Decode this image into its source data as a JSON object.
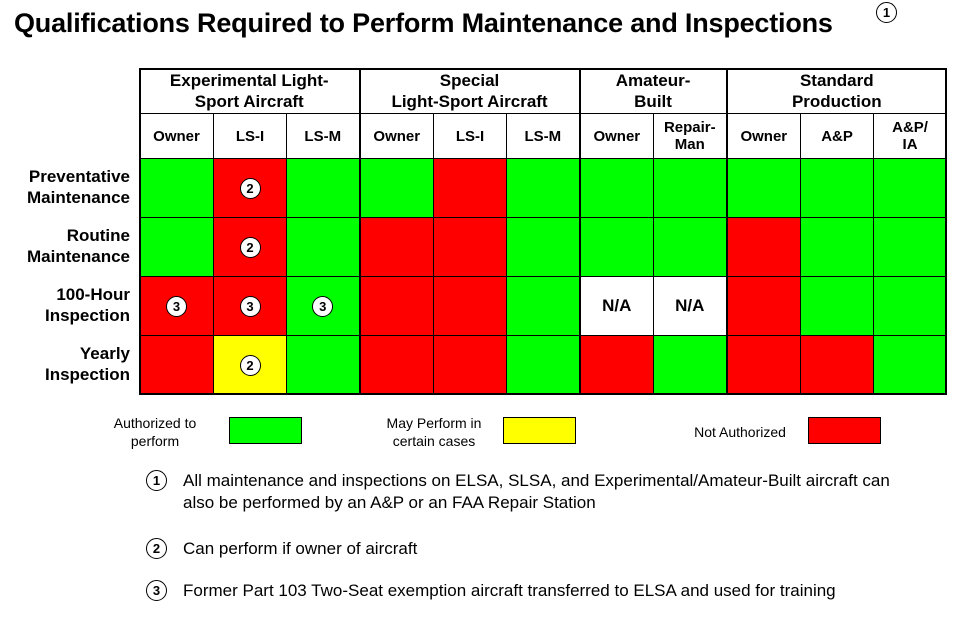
{
  "title": "Qualifications Required to Perform Maintenance and Inspections",
  "title_note": "1",
  "groups": [
    {
      "label": "Experimental Light-Sport Aircraft",
      "cols": [
        "Owner",
        "LS-I",
        "LS-M"
      ]
    },
    {
      "label": "Special Light-Sport Aircraft",
      "cols": [
        "Owner",
        "LS-I",
        "LS-M"
      ]
    },
    {
      "label": "Amateur-Built",
      "cols": [
        "Owner",
        "Repair-Man"
      ]
    },
    {
      "label": "Standard Production",
      "cols": [
        "Owner",
        "A&P",
        "A&P/ IA"
      ]
    }
  ],
  "group_lines": [
    [
      "Experimental Light-",
      "Sport Aircraft"
    ],
    [
      "Special",
      "Light-Sport Aircraft"
    ],
    [
      "Amateur-",
      "Built"
    ],
    [
      "Standard",
      "Production"
    ]
  ],
  "col_lines": [
    [
      "Owner"
    ],
    [
      "LS-I"
    ],
    [
      "LS-M"
    ],
    [
      "Owner"
    ],
    [
      "LS-I"
    ],
    [
      "LS-M"
    ],
    [
      "Owner"
    ],
    [
      "Repair-",
      "Man"
    ],
    [
      "Owner"
    ],
    [
      "A&P"
    ],
    [
      "A&P/",
      "IA"
    ]
  ],
  "rows": [
    {
      "label_lines": [
        "Preventative",
        "Maintenance"
      ],
      "cells": [
        [
          "g",
          ""
        ],
        [
          "r",
          "2"
        ],
        [
          "g",
          ""
        ],
        [
          "g",
          ""
        ],
        [
          "r",
          ""
        ],
        [
          "g",
          ""
        ],
        [
          "g",
          ""
        ],
        [
          "g",
          ""
        ],
        [
          "g",
          ""
        ],
        [
          "g",
          ""
        ],
        [
          "g",
          ""
        ]
      ]
    },
    {
      "label_lines": [
        "Routine",
        "Maintenance"
      ],
      "cells": [
        [
          "g",
          ""
        ],
        [
          "r",
          "2"
        ],
        [
          "g",
          ""
        ],
        [
          "r",
          ""
        ],
        [
          "r",
          ""
        ],
        [
          "g",
          ""
        ],
        [
          "g",
          ""
        ],
        [
          "g",
          ""
        ],
        [
          "r",
          ""
        ],
        [
          "g",
          ""
        ],
        [
          "g",
          ""
        ]
      ]
    },
    {
      "label_lines": [
        "100-Hour",
        "Inspection"
      ],
      "cells": [
        [
          "r",
          "3"
        ],
        [
          "r",
          "3"
        ],
        [
          "g",
          "3"
        ],
        [
          "r",
          ""
        ],
        [
          "r",
          ""
        ],
        [
          "g",
          ""
        ],
        [
          "w",
          "N/A"
        ],
        [
          "w",
          "N/A"
        ],
        [
          "r",
          ""
        ],
        [
          "g",
          ""
        ],
        [
          "g",
          ""
        ]
      ]
    },
    {
      "label_lines": [
        "Yearly",
        "Inspection"
      ],
      "cells": [
        [
          "r",
          ""
        ],
        [
          "y",
          "2"
        ],
        [
          "g",
          ""
        ],
        [
          "r",
          ""
        ],
        [
          "r",
          ""
        ],
        [
          "g",
          ""
        ],
        [
          "r",
          ""
        ],
        [
          "g",
          ""
        ],
        [
          "r",
          ""
        ],
        [
          "r",
          ""
        ],
        [
          "g",
          ""
        ]
      ]
    }
  ],
  "legend": [
    {
      "lines": [
        "Authorized to",
        "perform"
      ],
      "color": "#00ff00"
    },
    {
      "lines": [
        "May Perform in",
        "certain cases"
      ],
      "color": "#ffff00"
    },
    {
      "lines": [
        "Not Authorized"
      ],
      "color": "#ff0000"
    }
  ],
  "notes": [
    {
      "num": "1",
      "text": "All maintenance and inspections on ELSA, SLSA, and Experimental/Amateur-Built aircraft can also be performed by an A&P or an FAA Repair Station"
    },
    {
      "num": "2",
      "text": "Can perform if owner of aircraft"
    },
    {
      "num": "3",
      "text": "Former Part 103 Two-Seat exemption aircraft transferred to ELSA and used for training"
    }
  ],
  "colors": {
    "authorized": "#00ff00",
    "certain_cases": "#ffff00",
    "not_authorized": "#ff0000"
  }
}
